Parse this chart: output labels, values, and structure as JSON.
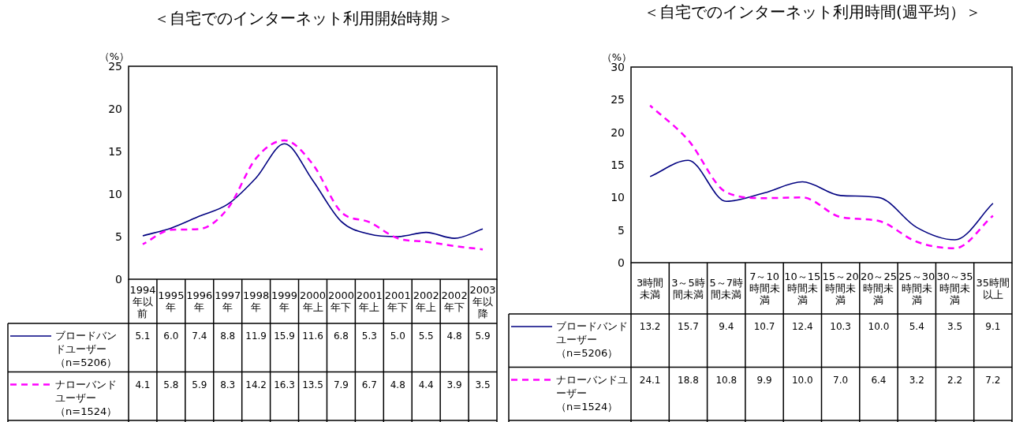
{
  "chart_data": [
    {
      "type": "line",
      "title": "＜自宅でのインターネット利用開始時期＞",
      "ylabel": "（%）",
      "categories": [
        "1994年以前",
        "1995年",
        "1996年",
        "1997年",
        "1998年",
        "1999年",
        "2000年上",
        "2000年下",
        "2001年上",
        "2001年下",
        "2002年上",
        "2002年下",
        "2003年以降"
      ],
      "ylim": [
        0,
        25
      ],
      "yticks": [
        0,
        5,
        10,
        15,
        20,
        25
      ],
      "legend": "bottom",
      "series": [
        {
          "name": "ブロードバンドユーザー（n=5206）",
          "color": "#000080",
          "line_style": "solid",
          "values": [
            5.1,
            6.0,
            7.4,
            8.8,
            11.9,
            15.9,
            11.6,
            6.8,
            5.3,
            5.0,
            5.5,
            4.8,
            5.9
          ],
          "value_labels": [
            "5.1",
            "6.0",
            "7.4",
            "8.8",
            "11.9",
            "15.9",
            "11.6",
            "6.8",
            "5.3",
            "5.0",
            "5.5",
            "4.8",
            "5.9"
          ]
        },
        {
          "name": "ナローバンドユーザー（n=1524）",
          "color": "#ff00ff",
          "line_style": "dashed",
          "values": [
            4.1,
            5.8,
            5.9,
            8.3,
            14.2,
            16.3,
            13.5,
            7.9,
            6.7,
            4.8,
            4.4,
            3.9,
            3.5
          ],
          "value_labels": [
            "4.1",
            "5.8",
            "5.9",
            "8.3",
            "14.2",
            "16.3",
            "13.5",
            "7.9",
            "6.7",
            "4.8",
            "4.4",
            "3.9",
            "3.5"
          ]
        }
      ]
    },
    {
      "type": "line",
      "title": "＜自宅でのインターネット利用時間(週平均）＞",
      "ylabel": "（%）",
      "categories": [
        "3時間未満",
        "3～5時間未満",
        "5～7時間未満",
        "7～10時間未満",
        "10～15時間未満",
        "15～20時間未満",
        "20～25時間未満",
        "25～30時間未満",
        "30～35時間未満",
        "35時間以上"
      ],
      "ylim": [
        0,
        30
      ],
      "yticks": [
        0,
        5,
        10,
        15,
        20,
        25,
        30
      ],
      "legend": "bottom",
      "series": [
        {
          "name": "ブロードバンドユーザー（n=5206）",
          "color": "#000080",
          "line_style": "solid",
          "values": [
            13.2,
            15.7,
            9.4,
            10.7,
            12.4,
            10.3,
            10.0,
            5.4,
            3.5,
            9.1
          ],
          "value_labels": [
            "13.2",
            "15.7",
            "9.4",
            "10.7",
            "12.4",
            "10.3",
            "10.0",
            "5.4",
            "3.5",
            "9.1"
          ]
        },
        {
          "name": "ナローバンドユーザー（n=1524）",
          "color": "#ff00ff",
          "line_style": "dashed",
          "values": [
            24.1,
            18.8,
            10.8,
            9.9,
            10.0,
            7.0,
            6.4,
            3.2,
            2.2,
            7.2
          ],
          "value_labels": [
            "24.1",
            "18.8",
            "10.8",
            "9.9",
            "10.0",
            "7.0",
            "6.4",
            "3.2",
            "2.2",
            "7.2"
          ]
        }
      ]
    }
  ]
}
